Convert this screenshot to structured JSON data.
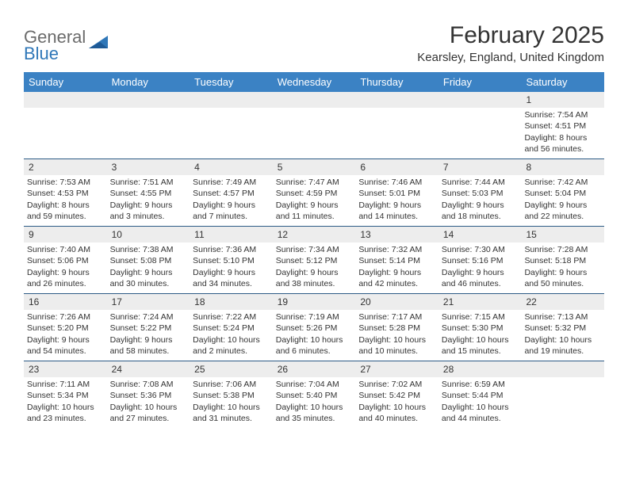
{
  "logo": {
    "word1": "General",
    "word2": "Blue"
  },
  "title": "February 2025",
  "location": "Kearsley, England, United Kingdom",
  "colors": {
    "header_bg": "#3b82c4",
    "header_text": "#ffffff",
    "daynum_bg": "#ededed",
    "week_divider": "#2d5b86",
    "logo_gray": "#6b6b6b",
    "logo_blue": "#2f77b8"
  },
  "fonts": {
    "title_size_pt": 22,
    "location_size_pt": 11,
    "dayheader_size_pt": 10,
    "daynum_size_pt": 9,
    "cell_size_pt": 8
  },
  "dayNames": [
    "Sunday",
    "Monday",
    "Tuesday",
    "Wednesday",
    "Thursday",
    "Friday",
    "Saturday"
  ],
  "weeks": [
    [
      {
        "n": "",
        "sunrise": "",
        "sunset": "",
        "daylight": ""
      },
      {
        "n": "",
        "sunrise": "",
        "sunset": "",
        "daylight": ""
      },
      {
        "n": "",
        "sunrise": "",
        "sunset": "",
        "daylight": ""
      },
      {
        "n": "",
        "sunrise": "",
        "sunset": "",
        "daylight": ""
      },
      {
        "n": "",
        "sunrise": "",
        "sunset": "",
        "daylight": ""
      },
      {
        "n": "",
        "sunrise": "",
        "sunset": "",
        "daylight": ""
      },
      {
        "n": "1",
        "sunrise": "Sunrise: 7:54 AM",
        "sunset": "Sunset: 4:51 PM",
        "daylight": "Daylight: 8 hours and 56 minutes."
      }
    ],
    [
      {
        "n": "2",
        "sunrise": "Sunrise: 7:53 AM",
        "sunset": "Sunset: 4:53 PM",
        "daylight": "Daylight: 8 hours and 59 minutes."
      },
      {
        "n": "3",
        "sunrise": "Sunrise: 7:51 AM",
        "sunset": "Sunset: 4:55 PM",
        "daylight": "Daylight: 9 hours and 3 minutes."
      },
      {
        "n": "4",
        "sunrise": "Sunrise: 7:49 AM",
        "sunset": "Sunset: 4:57 PM",
        "daylight": "Daylight: 9 hours and 7 minutes."
      },
      {
        "n": "5",
        "sunrise": "Sunrise: 7:47 AM",
        "sunset": "Sunset: 4:59 PM",
        "daylight": "Daylight: 9 hours and 11 minutes."
      },
      {
        "n": "6",
        "sunrise": "Sunrise: 7:46 AM",
        "sunset": "Sunset: 5:01 PM",
        "daylight": "Daylight: 9 hours and 14 minutes."
      },
      {
        "n": "7",
        "sunrise": "Sunrise: 7:44 AM",
        "sunset": "Sunset: 5:03 PM",
        "daylight": "Daylight: 9 hours and 18 minutes."
      },
      {
        "n": "8",
        "sunrise": "Sunrise: 7:42 AM",
        "sunset": "Sunset: 5:04 PM",
        "daylight": "Daylight: 9 hours and 22 minutes."
      }
    ],
    [
      {
        "n": "9",
        "sunrise": "Sunrise: 7:40 AM",
        "sunset": "Sunset: 5:06 PM",
        "daylight": "Daylight: 9 hours and 26 minutes."
      },
      {
        "n": "10",
        "sunrise": "Sunrise: 7:38 AM",
        "sunset": "Sunset: 5:08 PM",
        "daylight": "Daylight: 9 hours and 30 minutes."
      },
      {
        "n": "11",
        "sunrise": "Sunrise: 7:36 AM",
        "sunset": "Sunset: 5:10 PM",
        "daylight": "Daylight: 9 hours and 34 minutes."
      },
      {
        "n": "12",
        "sunrise": "Sunrise: 7:34 AM",
        "sunset": "Sunset: 5:12 PM",
        "daylight": "Daylight: 9 hours and 38 minutes."
      },
      {
        "n": "13",
        "sunrise": "Sunrise: 7:32 AM",
        "sunset": "Sunset: 5:14 PM",
        "daylight": "Daylight: 9 hours and 42 minutes."
      },
      {
        "n": "14",
        "sunrise": "Sunrise: 7:30 AM",
        "sunset": "Sunset: 5:16 PM",
        "daylight": "Daylight: 9 hours and 46 minutes."
      },
      {
        "n": "15",
        "sunrise": "Sunrise: 7:28 AM",
        "sunset": "Sunset: 5:18 PM",
        "daylight": "Daylight: 9 hours and 50 minutes."
      }
    ],
    [
      {
        "n": "16",
        "sunrise": "Sunrise: 7:26 AM",
        "sunset": "Sunset: 5:20 PM",
        "daylight": "Daylight: 9 hours and 54 minutes."
      },
      {
        "n": "17",
        "sunrise": "Sunrise: 7:24 AM",
        "sunset": "Sunset: 5:22 PM",
        "daylight": "Daylight: 9 hours and 58 minutes."
      },
      {
        "n": "18",
        "sunrise": "Sunrise: 7:22 AM",
        "sunset": "Sunset: 5:24 PM",
        "daylight": "Daylight: 10 hours and 2 minutes."
      },
      {
        "n": "19",
        "sunrise": "Sunrise: 7:19 AM",
        "sunset": "Sunset: 5:26 PM",
        "daylight": "Daylight: 10 hours and 6 minutes."
      },
      {
        "n": "20",
        "sunrise": "Sunrise: 7:17 AM",
        "sunset": "Sunset: 5:28 PM",
        "daylight": "Daylight: 10 hours and 10 minutes."
      },
      {
        "n": "21",
        "sunrise": "Sunrise: 7:15 AM",
        "sunset": "Sunset: 5:30 PM",
        "daylight": "Daylight: 10 hours and 15 minutes."
      },
      {
        "n": "22",
        "sunrise": "Sunrise: 7:13 AM",
        "sunset": "Sunset: 5:32 PM",
        "daylight": "Daylight: 10 hours and 19 minutes."
      }
    ],
    [
      {
        "n": "23",
        "sunrise": "Sunrise: 7:11 AM",
        "sunset": "Sunset: 5:34 PM",
        "daylight": "Daylight: 10 hours and 23 minutes."
      },
      {
        "n": "24",
        "sunrise": "Sunrise: 7:08 AM",
        "sunset": "Sunset: 5:36 PM",
        "daylight": "Daylight: 10 hours and 27 minutes."
      },
      {
        "n": "25",
        "sunrise": "Sunrise: 7:06 AM",
        "sunset": "Sunset: 5:38 PM",
        "daylight": "Daylight: 10 hours and 31 minutes."
      },
      {
        "n": "26",
        "sunrise": "Sunrise: 7:04 AM",
        "sunset": "Sunset: 5:40 PM",
        "daylight": "Daylight: 10 hours and 35 minutes."
      },
      {
        "n": "27",
        "sunrise": "Sunrise: 7:02 AM",
        "sunset": "Sunset: 5:42 PM",
        "daylight": "Daylight: 10 hours and 40 minutes."
      },
      {
        "n": "28",
        "sunrise": "Sunrise: 6:59 AM",
        "sunset": "Sunset: 5:44 PM",
        "daylight": "Daylight: 10 hours and 44 minutes."
      },
      {
        "n": "",
        "sunrise": "",
        "sunset": "",
        "daylight": ""
      }
    ]
  ]
}
